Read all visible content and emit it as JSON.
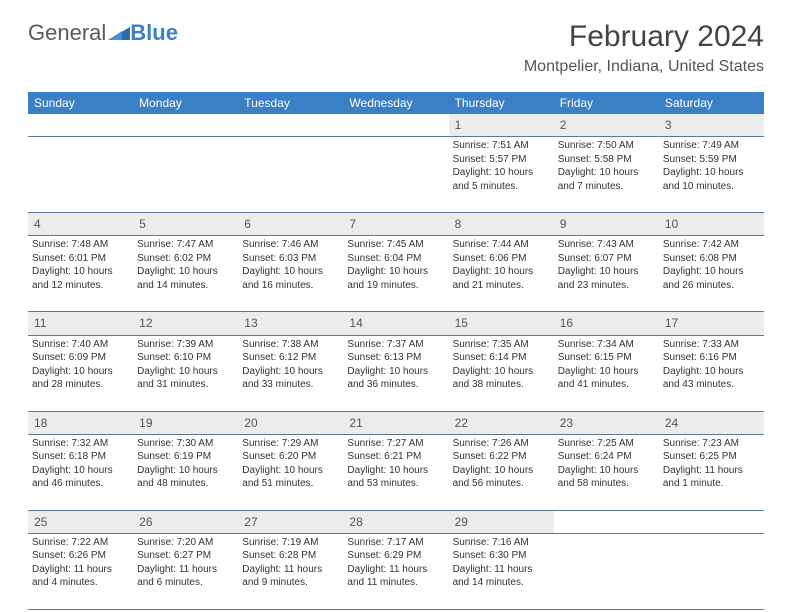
{
  "brand": {
    "part1": "General",
    "part2": "Blue"
  },
  "title": "February 2024",
  "location": "Montpelier, Indiana, United States",
  "colors": {
    "header_bg": "#3b7fc4",
    "header_text": "#ffffff",
    "daynum_bg": "#ececec",
    "rule": "#5a7a9a",
    "body_text": "#333333"
  },
  "weekdays": [
    "Sunday",
    "Monday",
    "Tuesday",
    "Wednesday",
    "Thursday",
    "Friday",
    "Saturday"
  ],
  "weeks": [
    [
      null,
      null,
      null,
      null,
      {
        "n": "1",
        "sr": "7:51 AM",
        "ss": "5:57 PM",
        "dl": "10 hours and 5 minutes."
      },
      {
        "n": "2",
        "sr": "7:50 AM",
        "ss": "5:58 PM",
        "dl": "10 hours and 7 minutes."
      },
      {
        "n": "3",
        "sr": "7:49 AM",
        "ss": "5:59 PM",
        "dl": "10 hours and 10 minutes."
      }
    ],
    [
      {
        "n": "4",
        "sr": "7:48 AM",
        "ss": "6:01 PM",
        "dl": "10 hours and 12 minutes."
      },
      {
        "n": "5",
        "sr": "7:47 AM",
        "ss": "6:02 PM",
        "dl": "10 hours and 14 minutes."
      },
      {
        "n": "6",
        "sr": "7:46 AM",
        "ss": "6:03 PM",
        "dl": "10 hours and 16 minutes."
      },
      {
        "n": "7",
        "sr": "7:45 AM",
        "ss": "6:04 PM",
        "dl": "10 hours and 19 minutes."
      },
      {
        "n": "8",
        "sr": "7:44 AM",
        "ss": "6:06 PM",
        "dl": "10 hours and 21 minutes."
      },
      {
        "n": "9",
        "sr": "7:43 AM",
        "ss": "6:07 PM",
        "dl": "10 hours and 23 minutes."
      },
      {
        "n": "10",
        "sr": "7:42 AM",
        "ss": "6:08 PM",
        "dl": "10 hours and 26 minutes."
      }
    ],
    [
      {
        "n": "11",
        "sr": "7:40 AM",
        "ss": "6:09 PM",
        "dl": "10 hours and 28 minutes."
      },
      {
        "n": "12",
        "sr": "7:39 AM",
        "ss": "6:10 PM",
        "dl": "10 hours and 31 minutes."
      },
      {
        "n": "13",
        "sr": "7:38 AM",
        "ss": "6:12 PM",
        "dl": "10 hours and 33 minutes."
      },
      {
        "n": "14",
        "sr": "7:37 AM",
        "ss": "6:13 PM",
        "dl": "10 hours and 36 minutes."
      },
      {
        "n": "15",
        "sr": "7:35 AM",
        "ss": "6:14 PM",
        "dl": "10 hours and 38 minutes."
      },
      {
        "n": "16",
        "sr": "7:34 AM",
        "ss": "6:15 PM",
        "dl": "10 hours and 41 minutes."
      },
      {
        "n": "17",
        "sr": "7:33 AM",
        "ss": "6:16 PM",
        "dl": "10 hours and 43 minutes."
      }
    ],
    [
      {
        "n": "18",
        "sr": "7:32 AM",
        "ss": "6:18 PM",
        "dl": "10 hours and 46 minutes."
      },
      {
        "n": "19",
        "sr": "7:30 AM",
        "ss": "6:19 PM",
        "dl": "10 hours and 48 minutes."
      },
      {
        "n": "20",
        "sr": "7:29 AM",
        "ss": "6:20 PM",
        "dl": "10 hours and 51 minutes."
      },
      {
        "n": "21",
        "sr": "7:27 AM",
        "ss": "6:21 PM",
        "dl": "10 hours and 53 minutes."
      },
      {
        "n": "22",
        "sr": "7:26 AM",
        "ss": "6:22 PM",
        "dl": "10 hours and 56 minutes."
      },
      {
        "n": "23",
        "sr": "7:25 AM",
        "ss": "6:24 PM",
        "dl": "10 hours and 58 minutes."
      },
      {
        "n": "24",
        "sr": "7:23 AM",
        "ss": "6:25 PM",
        "dl": "11 hours and 1 minute."
      }
    ],
    [
      {
        "n": "25",
        "sr": "7:22 AM",
        "ss": "6:26 PM",
        "dl": "11 hours and 4 minutes."
      },
      {
        "n": "26",
        "sr": "7:20 AM",
        "ss": "6:27 PM",
        "dl": "11 hours and 6 minutes."
      },
      {
        "n": "27",
        "sr": "7:19 AM",
        "ss": "6:28 PM",
        "dl": "11 hours and 9 minutes."
      },
      {
        "n": "28",
        "sr": "7:17 AM",
        "ss": "6:29 PM",
        "dl": "11 hours and 11 minutes."
      },
      {
        "n": "29",
        "sr": "7:16 AM",
        "ss": "6:30 PM",
        "dl": "11 hours and 14 minutes."
      },
      null,
      null
    ]
  ],
  "labels": {
    "sunrise": "Sunrise:",
    "sunset": "Sunset:",
    "daylight": "Daylight:"
  }
}
